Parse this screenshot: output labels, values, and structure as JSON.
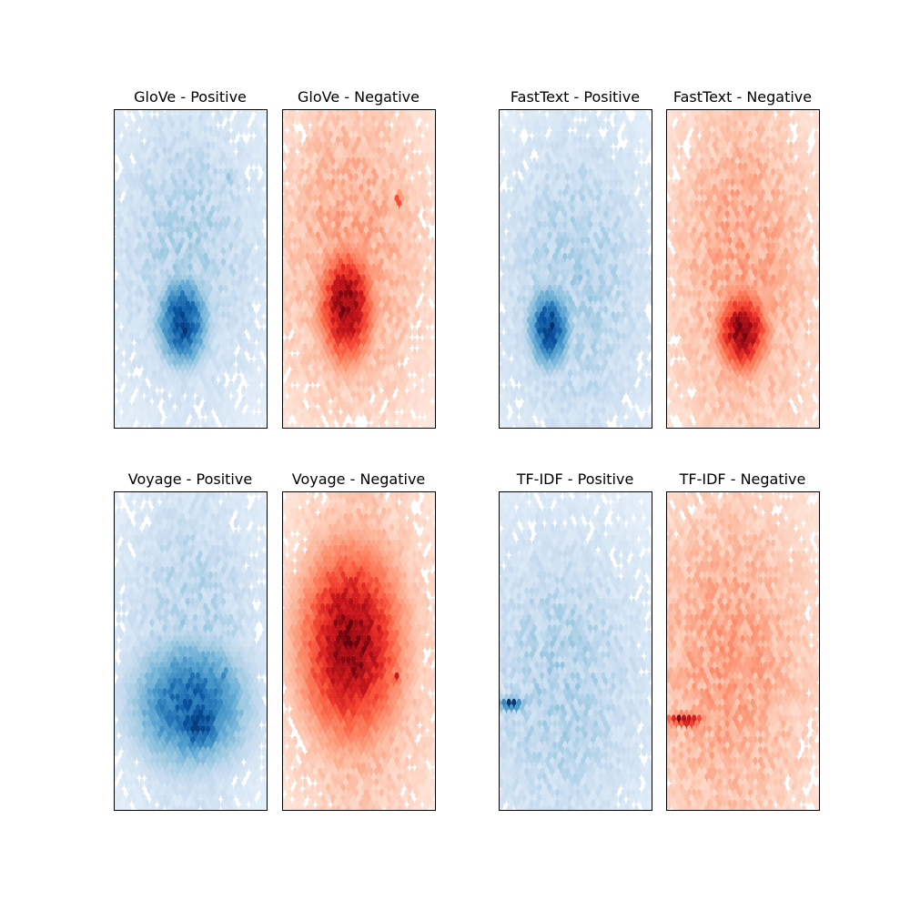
{
  "chart_data": [
    {
      "type": "heatmap",
      "subtype": "hexbin",
      "title": "GloVe - Positive",
      "colormap": "Blues",
      "axes_visible": false,
      "grid": false,
      "peak": [
        0.45,
        0.33
      ],
      "background_cloud": {
        "center": [
          0.48,
          0.55
        ],
        "spread": [
          0.38,
          0.38
        ]
      },
      "hotspots": [
        {
          "center": [
            0.45,
            0.33
          ],
          "spread": [
            0.12,
            0.1
          ],
          "intensity": 1.0
        },
        {
          "center": [
            0.76,
            0.78
          ],
          "spread": [
            0.02,
            0.02
          ],
          "intensity": 0.45
        }
      ]
    },
    {
      "type": "heatmap",
      "subtype": "hexbin",
      "title": "GloVe - Negative",
      "colormap": "Reds",
      "axes_visible": false,
      "grid": false,
      "peak": [
        0.42,
        0.38
      ],
      "background_cloud": {
        "center": [
          0.45,
          0.55
        ],
        "spread": [
          0.38,
          0.4
        ]
      },
      "hotspots": [
        {
          "center": [
            0.42,
            0.38
          ],
          "spread": [
            0.13,
            0.13
          ],
          "intensity": 1.0
        },
        {
          "center": [
            0.76,
            0.71
          ],
          "spread": [
            0.02,
            0.02
          ],
          "intensity": 0.7
        }
      ]
    },
    {
      "type": "heatmap",
      "subtype": "hexbin",
      "title": "FastText - Positive",
      "colormap": "Blues",
      "axes_visible": false,
      "grid": false,
      "peak": [
        0.33,
        0.31
      ],
      "background_cloud": {
        "center": [
          0.5,
          0.45
        ],
        "spread": [
          0.4,
          0.4
        ]
      },
      "hotspots": [
        {
          "center": [
            0.33,
            0.31
          ],
          "spread": [
            0.1,
            0.09
          ],
          "intensity": 1.0
        }
      ]
    },
    {
      "type": "heatmap",
      "subtype": "hexbin",
      "title": "FastText - Negative",
      "colormap": "Reds",
      "axes_visible": false,
      "grid": false,
      "peak": [
        0.5,
        0.3
      ],
      "background_cloud": {
        "center": [
          0.5,
          0.5
        ],
        "spread": [
          0.38,
          0.45
        ]
      },
      "hotspots": [
        {
          "center": [
            0.5,
            0.3
          ],
          "spread": [
            0.12,
            0.09
          ],
          "intensity": 1.0
        },
        {
          "center": [
            0.55,
            0.76
          ],
          "spread": [
            0.03,
            0.05
          ],
          "intensity": 0.35
        }
      ]
    },
    {
      "type": "heatmap",
      "subtype": "hexbin",
      "title": "Voyage - Positive",
      "colormap": "Blues",
      "axes_visible": false,
      "grid": false,
      "peak": [
        0.55,
        0.27
      ],
      "background_cloud": {
        "center": [
          0.5,
          0.5
        ],
        "spread": [
          0.36,
          0.42
        ]
      },
      "hotspots": [
        {
          "center": [
            0.5,
            0.33
          ],
          "spread": [
            0.28,
            0.15
          ],
          "intensity": 0.85
        },
        {
          "center": [
            0.55,
            0.27
          ],
          "spread": [
            0.14,
            0.08
          ],
          "intensity": 1.0
        },
        {
          "center": [
            0.73,
            0.42
          ],
          "spread": [
            0.02,
            0.02
          ],
          "intensity": 0.8
        }
      ]
    },
    {
      "type": "heatmap",
      "subtype": "hexbin",
      "title": "Voyage - Negative",
      "colormap": "Reds",
      "axes_visible": false,
      "grid": false,
      "peak": [
        0.45,
        0.52
      ],
      "background_cloud": {
        "center": [
          0.5,
          0.5
        ],
        "spread": [
          0.36,
          0.45
        ]
      },
      "hotspots": [
        {
          "center": [
            0.45,
            0.52
          ],
          "spread": [
            0.24,
            0.22
          ],
          "intensity": 1.0
        },
        {
          "center": [
            0.75,
            0.41
          ],
          "spread": [
            0.02,
            0.02
          ],
          "intensity": 0.8
        }
      ]
    },
    {
      "type": "heatmap",
      "subtype": "hexbin",
      "title": "TF-IDF - Positive",
      "colormap": "Blues",
      "axes_visible": false,
      "grid": false,
      "peak": [
        0.08,
        0.33
      ],
      "background_cloud": {
        "center": [
          0.4,
          0.4
        ],
        "spread": [
          0.45,
          0.4
        ]
      },
      "hotspots": [
        {
          "center": [
            0.08,
            0.33
          ],
          "spread": [
            0.07,
            0.015
          ],
          "intensity": 1.0
        },
        {
          "center": [
            0.3,
            0.33
          ],
          "spread": [
            0.2,
            0.06
          ],
          "intensity": 0.25
        }
      ]
    },
    {
      "type": "heatmap",
      "subtype": "hexbin",
      "title": "TF-IDF - Negative",
      "colormap": "Reds",
      "axes_visible": false,
      "grid": false,
      "peak": [
        0.12,
        0.28
      ],
      "background_cloud": {
        "center": [
          0.4,
          0.45
        ],
        "spread": [
          0.45,
          0.45
        ]
      },
      "hotspots": [
        {
          "center": [
            0.12,
            0.28
          ],
          "spread": [
            0.09,
            0.015
          ],
          "intensity": 1.0
        },
        {
          "center": [
            0.3,
            0.3
          ],
          "spread": [
            0.2,
            0.07
          ],
          "intensity": 0.25
        }
      ]
    }
  ]
}
